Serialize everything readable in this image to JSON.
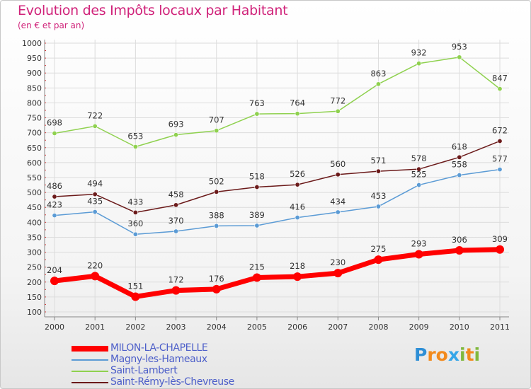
{
  "header": {
    "title": "Evolution des Impôts locaux par Habitant",
    "subtitle": "(en € et par an)"
  },
  "logo": {
    "text": "Proxiti",
    "letters": [
      "P",
      "r",
      "o",
      "x",
      "i",
      "t",
      "i"
    ],
    "colors": [
      "#2e8fd6",
      "#f28a1c",
      "#f28a1c",
      "#35a6e8",
      "#7fb83c",
      "#f28a1c",
      "#7fb83c"
    ]
  },
  "chart_data": {
    "type": "line",
    "x": [
      "2000",
      "2001",
      "2002",
      "2003",
      "2004",
      "2005",
      "2006",
      "2007",
      "2008",
      "2009",
      "2010",
      "2011"
    ],
    "ylim": [
      100,
      1000
    ],
    "yticks": [
      100,
      150,
      200,
      250,
      300,
      350,
      400,
      450,
      500,
      550,
      600,
      650,
      700,
      750,
      800,
      850,
      900,
      950,
      1000
    ],
    "grid": true,
    "legend_position": "bottom-left",
    "series": [
      {
        "name": "MILON-LA-CHAPELLE",
        "color": "#ff0000",
        "values": [
          204,
          220,
          151,
          172,
          176,
          215,
          218,
          230,
          275,
          293,
          306,
          309
        ]
      },
      {
        "name": "Magny-les-Hameaux",
        "color": "#5b9bd5",
        "values": [
          423,
          435,
          360,
          370,
          388,
          389,
          416,
          434,
          453,
          525,
          558,
          577
        ]
      },
      {
        "name": "Saint-Lambert",
        "color": "#8fd14f",
        "values": [
          698,
          722,
          653,
          693,
          707,
          763,
          764,
          772,
          863,
          932,
          953,
          847
        ]
      },
      {
        "name": "Saint-Rémy-lès-Chevreuse",
        "color": "#6b1a1a",
        "values": [
          486,
          494,
          433,
          458,
          502,
          518,
          526,
          560,
          571,
          578,
          618,
          672
        ]
      }
    ]
  }
}
